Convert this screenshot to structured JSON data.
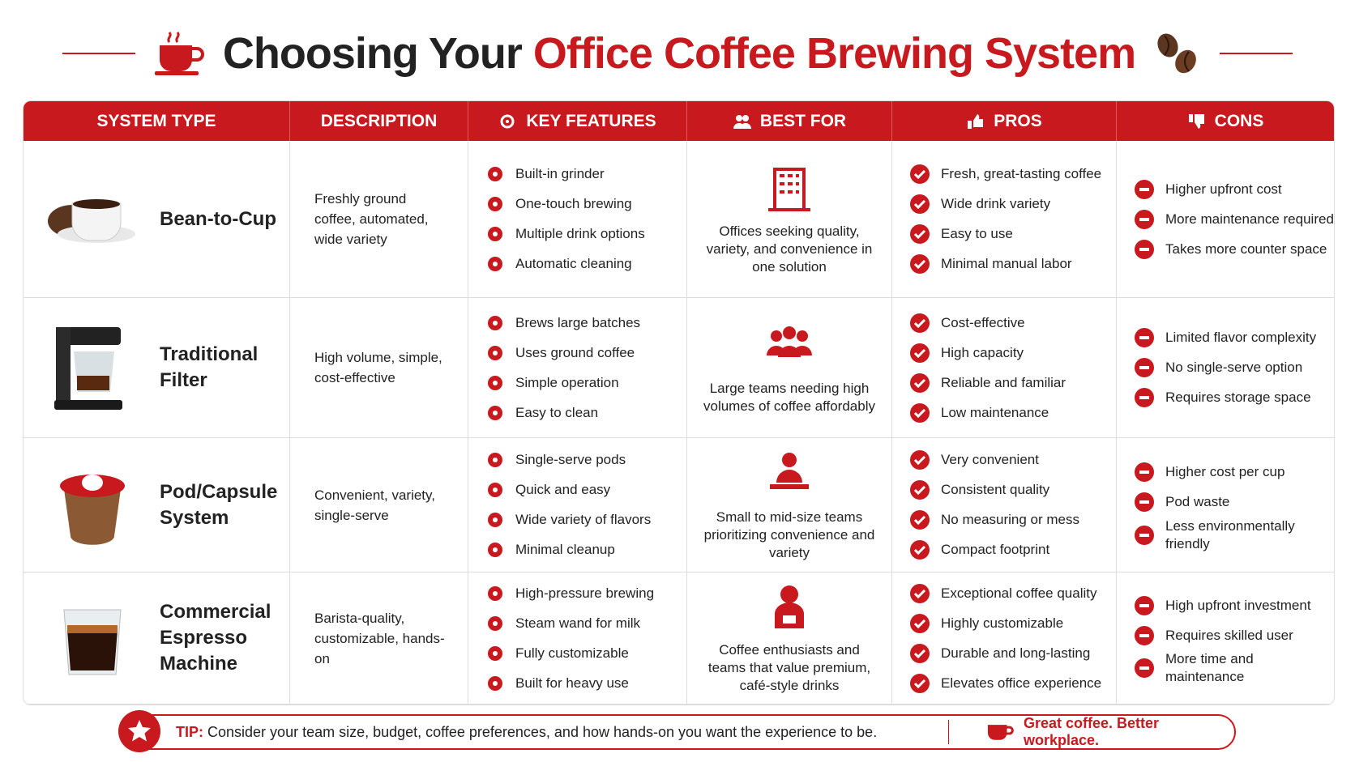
{
  "header": {
    "title_part1": "Choosing Your",
    "title_part2": "Office Coffee Brewing System"
  },
  "table": {
    "columns": [
      "SYSTEM TYPE",
      "DESCRIPTION",
      "KEY FEATURES",
      "BEST FOR",
      "PROS",
      "CONS"
    ],
    "rows": [
      {
        "name": "Bean-to-Cup",
        "description": "Freshly ground coffee, automated, wide variety",
        "features": [
          "Built-in grinder",
          "One-touch brewing",
          "Multiple drink options",
          "Automatic cleaning"
        ],
        "best_for": "Offices seeking quality, variety, and convenience in one solution",
        "pros": [
          "Fresh, great-tasting coffee",
          "Wide drink variety",
          "Easy to use",
          "Minimal manual labor"
        ],
        "cons": [
          "Higher upfront cost",
          "More maintenance required",
          "Takes more counter space"
        ]
      },
      {
        "name": "Traditional Filter",
        "description": "High volume, simple, cost-effective",
        "features": [
          "Brews large batches",
          "Uses ground coffee",
          "Simple operation",
          "Easy to clean"
        ],
        "best_for": "Large teams needing high volumes of coffee affordably",
        "pros": [
          "Cost-effective",
          "High capacity",
          "Reliable and familiar",
          "Low maintenance"
        ],
        "cons": [
          "Limited flavor complexity",
          "No single-serve option",
          "Requires storage space"
        ]
      },
      {
        "name": "Pod/Capsule System",
        "description": "Convenient, variety, single-serve",
        "features": [
          "Single-serve pods",
          "Quick and easy",
          "Wide variety of flavors",
          "Minimal cleanup"
        ],
        "best_for": "Small to mid-size teams prioritizing convenience and variety",
        "pros": [
          "Very convenient",
          "Consistent quality",
          "No measuring or mess",
          "Compact footprint"
        ],
        "cons": [
          "Higher cost per cup",
          "Pod waste",
          "Less environmentally friendly"
        ]
      },
      {
        "name": "Commercial Espresso Machine",
        "description": "Barista-quality, customizable, hands-on",
        "features": [
          "High-pressure brewing",
          "Steam wand for milk",
          "Fully customizable",
          "Built for heavy use"
        ],
        "best_for": "Coffee enthusiasts and teams that value premium, café-style drinks",
        "pros": [
          "Exceptional coffee quality",
          "Highly customizable",
          "Durable and long-lasting",
          "Elevates office experience"
        ],
        "cons": [
          "High upfront investment",
          "Requires skilled user",
          "More time and maintenance"
        ]
      }
    ]
  },
  "tip": {
    "label": "TIP:",
    "text": "Consider your team size, budget, coffee preferences, and how hands-on you want the experience to be.",
    "slogan": "Great coffee. Better workplace."
  }
}
